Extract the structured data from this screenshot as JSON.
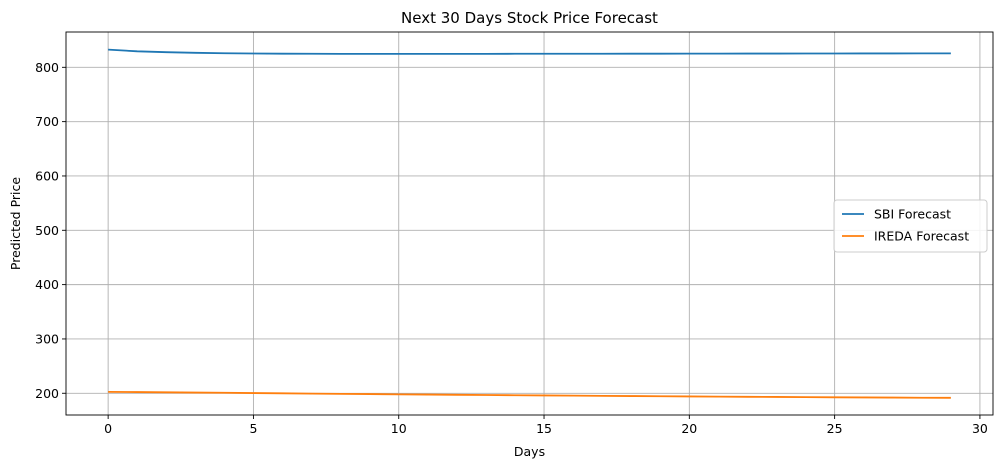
{
  "chart_data": {
    "type": "line",
    "title": "Next 30 Days Stock Price Forecast",
    "xlabel": "Days",
    "ylabel": "Predicted Price",
    "xlim": [
      -1.45,
      30.45
    ],
    "ylim": [
      160,
      865
    ],
    "xticks": [
      0,
      5,
      10,
      15,
      20,
      25,
      30
    ],
    "yticks": [
      200,
      300,
      400,
      500,
      600,
      700,
      800
    ],
    "grid": true,
    "legend_position": "center-right",
    "x": [
      0,
      1,
      2,
      3,
      4,
      5,
      6,
      7,
      8,
      9,
      10,
      11,
      12,
      13,
      14,
      15,
      16,
      17,
      18,
      19,
      20,
      21,
      22,
      23,
      24,
      25,
      26,
      27,
      28,
      29
    ],
    "series": [
      {
        "name": "SBI Forecast",
        "color": "#1f77b4",
        "values": [
          832.5,
          829.5,
          827.8,
          826.7,
          825.9,
          825.4,
          825.1,
          824.9,
          824.8,
          824.8,
          824.8,
          824.8,
          824.8,
          824.8,
          824.9,
          824.9,
          825.0,
          825.0,
          825.1,
          825.1,
          825.2,
          825.2,
          825.3,
          825.3,
          825.4,
          825.4,
          825.5,
          825.5,
          825.6,
          825.6
        ]
      },
      {
        "name": "IREDA Forecast",
        "color": "#ff7f0e",
        "values": [
          202.5,
          202.2,
          201.8,
          201.3,
          200.9,
          200.4,
          199.9,
          199.4,
          198.9,
          198.5,
          198.0,
          197.6,
          197.2,
          196.8,
          196.4,
          196.0,
          195.6,
          195.2,
          194.9,
          194.5,
          194.2,
          193.8,
          193.5,
          193.2,
          192.9,
          192.6,
          192.3,
          192.1,
          191.8,
          191.6
        ]
      }
    ]
  }
}
